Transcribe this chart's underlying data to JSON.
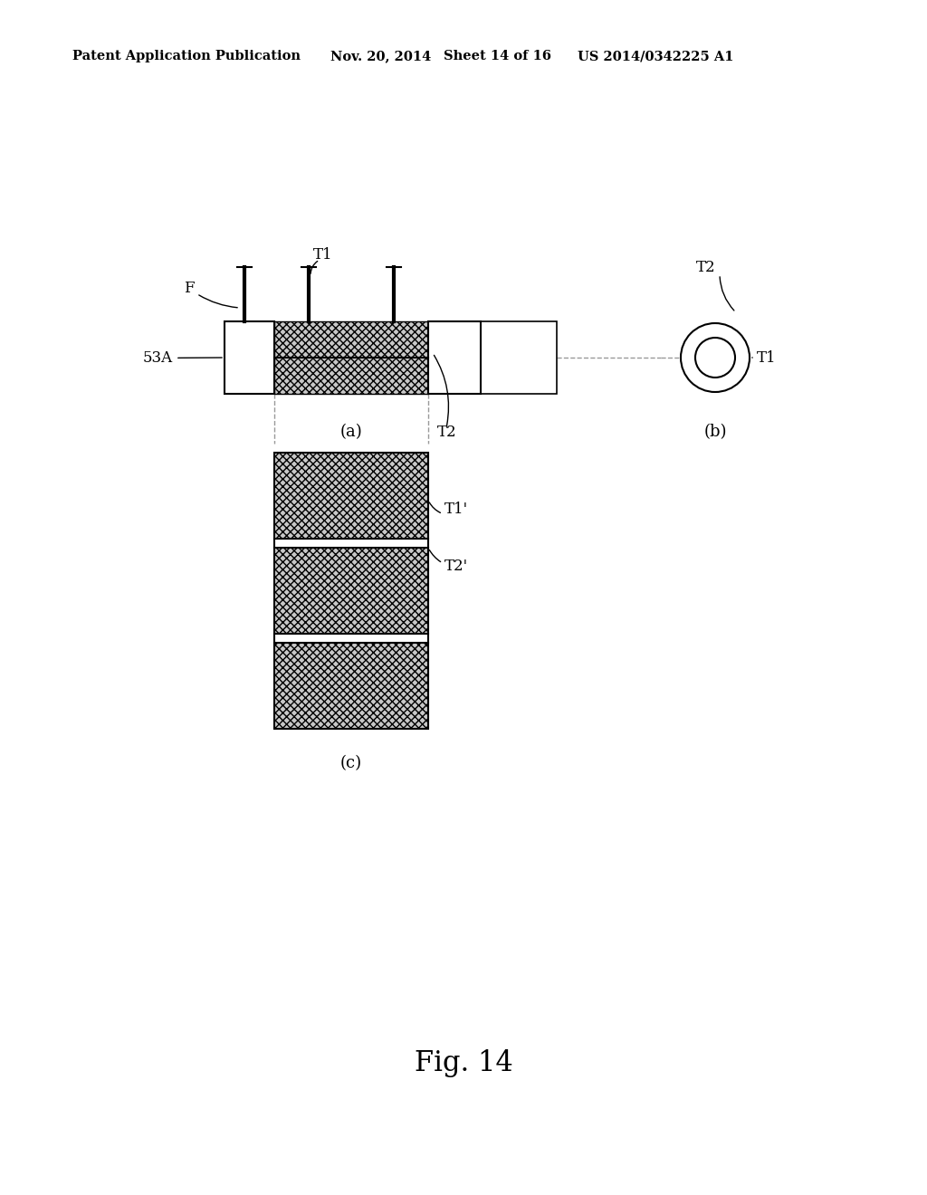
{
  "bg_color": "#ffffff",
  "header_text": "Patent Application Publication",
  "header_date": "Nov. 20, 2014",
  "header_sheet": "Sheet 14 of 16",
  "header_patent": "US 2014/0342225 A1",
  "fig_label": "Fig. 14",
  "hatching_color": "#c8c8c8",
  "line_color": "#000000",
  "dashed_color": "#999999"
}
